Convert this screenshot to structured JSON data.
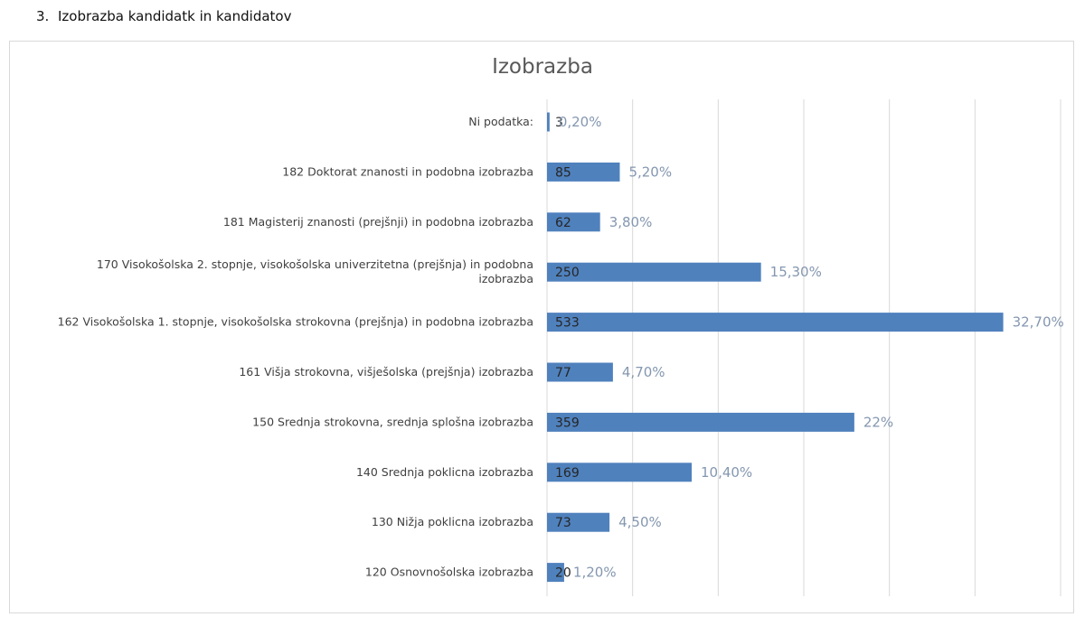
{
  "heading": {
    "number": "3.",
    "text": "Izobrazba kandidatk in kandidatov"
  },
  "colors": {
    "bar": "#4f81bd",
    "grid": "#d9d9d9",
    "percent_label": "#8497b0"
  },
  "chart_data": {
    "type": "bar",
    "orientation": "horizontal",
    "title": "Izobrazba",
    "xlabel": "",
    "ylabel": "",
    "xlim": [
      0,
      600
    ],
    "grid": "vertical",
    "legend": "none",
    "categories": [
      [
        "Ni podatka:"
      ],
      [
        "182 Doktorat znanosti in podobna izobrazba"
      ],
      [
        "181 Magisterij znanosti (prejšnji) in podobna izobrazba"
      ],
      [
        "170 Visokošolska 2. stopnje, visokošolska univerzitetna (prejšnja) in podobna",
        "izobrazba"
      ],
      [
        "162 Visokošolska 1. stopnje, visokošolska strokovna (prejšnja) in podobna izobrazba"
      ],
      [
        "161 Višja strokovna, višješolska (prejšnja) izobrazba"
      ],
      [
        "150 Srednja strokovna, srednja splošna izobrazba"
      ],
      [
        "140 Srednja poklicna izobrazba"
      ],
      [
        "130 Nižja poklicna izobrazba"
      ],
      [
        "120 Osnovnošolska izobrazba"
      ]
    ],
    "values": [
      3,
      85,
      62,
      250,
      533,
      77,
      359,
      169,
      73,
      20
    ],
    "percent_labels": [
      "0,20%",
      "5,20%",
      "3,80%",
      "15,30%",
      "32,70%",
      "4,70%",
      "22%",
      "10,40%",
      "4,50%",
      "1,20%"
    ]
  }
}
